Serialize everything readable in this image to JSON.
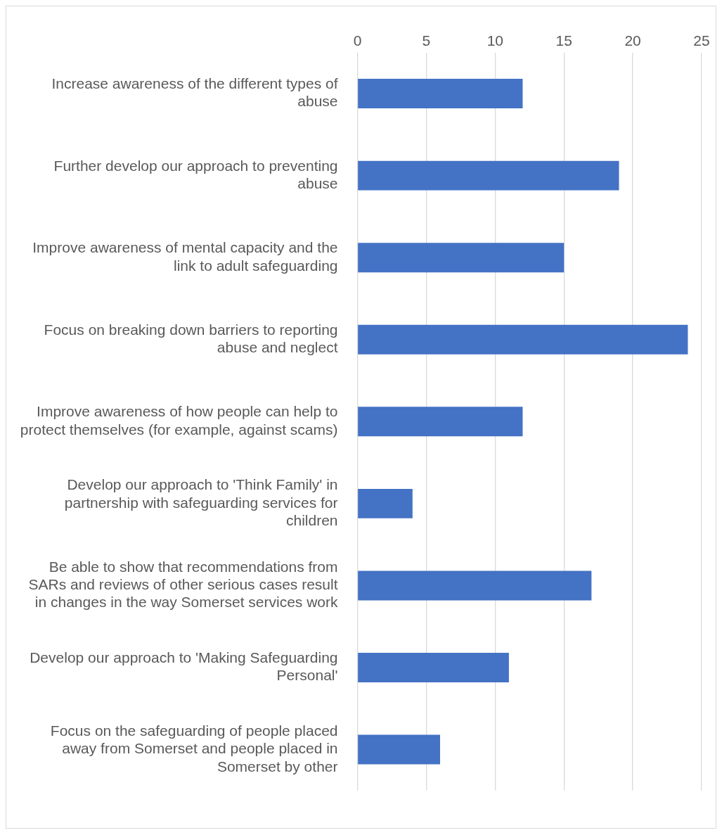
{
  "chart_data": {
    "type": "bar",
    "orientation": "horizontal",
    "categories": [
      "Increase awareness of the different types of abuse",
      "Further develop our approach to preventing abuse",
      "Improve awareness of mental capacity and the link to adult safeguarding",
      "Focus on breaking down barriers to reporting abuse and neglect",
      "Improve awareness of how people can help to protect themselves (for example, against scams)",
      "Develop our approach to 'Think Family' in partnership with safeguarding services for children",
      "Be able to show that recommendations from SARs and reviews of other serious cases result in changes in the way Somerset services work",
      "Develop our approach to 'Making Safeguarding Personal'",
      "Focus on the safeguarding of people placed away from Somerset and people placed in Somerset by other"
    ],
    "values": [
      12,
      19,
      15,
      24,
      12,
      4,
      17,
      11,
      6
    ],
    "color": "#4472c4",
    "xlim": [
      0,
      25
    ],
    "xticks": [
      0,
      5,
      10,
      15,
      20,
      25
    ],
    "grid": "x",
    "legend": false
  }
}
